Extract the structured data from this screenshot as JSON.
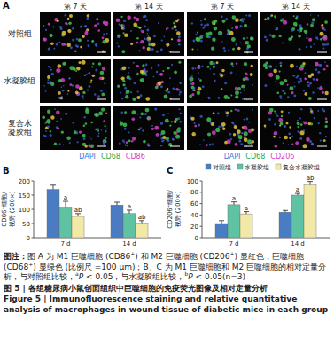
{
  "panel_a": {
    "label": "A",
    "columns": [
      "第 7 天",
      "第 14 天",
      "第 7 天",
      "第 14 天"
    ],
    "rows": [
      "对照组",
      "水凝胶组",
      "复合水凝胶组"
    ],
    "stain_legends": [
      [
        {
          "text": "DAPI",
          "color": "#3b7be0"
        },
        {
          "text": "CD68",
          "color": "#2faa4f"
        },
        {
          "text": "CD86",
          "color": "#d63fc4"
        }
      ],
      [
        {
          "text": "DAPI",
          "color": "#3b7be0"
        },
        {
          "text": "CD68",
          "color": "#2faa4f"
        },
        {
          "text": "CD206",
          "color": "#d63fc4"
        }
      ]
    ]
  },
  "chart_data": [
    {
      "type": "bar",
      "label": "B",
      "y_label": "CD86⁺细胞/视野 (200×)",
      "categories": [
        "7 d",
        "14 d"
      ],
      "series": [
        {
          "color": "#4a7cc4",
          "values": [
            170,
            115
          ],
          "errors": [
            15,
            10
          ]
        },
        {
          "color": "#5fc2a2",
          "values": [
            108,
            85
          ],
          "errors": [
            20,
            12
          ],
          "significance": [
            "a",
            "a"
          ]
        },
        {
          "color": "#f3e9a6",
          "values": [
            75,
            52
          ],
          "errors": [
            10,
            8
          ],
          "significance": [
            "ab",
            "ab"
          ]
        }
      ],
      "ylim": [
        0,
        200
      ],
      "yticks": [
        0,
        50,
        100,
        150,
        200
      ]
    },
    {
      "type": "bar",
      "label": "C",
      "y_label": "CD206⁺细胞/视野 (200×)",
      "categories": [
        "7 d",
        "14 d"
      ],
      "series": [
        {
          "name": "对照组",
          "color": "#4a7cc4",
          "values": [
            25,
            45
          ],
          "errors": [
            5,
            3
          ]
        },
        {
          "name": "水凝胶组",
          "color": "#5fc2a2",
          "values": [
            58,
            75
          ],
          "errors": [
            5,
            3
          ],
          "significance": [
            "a",
            "a"
          ]
        },
        {
          "name": "复合水凝胶组",
          "color": "#f3e9a6",
          "values": [
            42,
            93
          ],
          "errors": [
            4,
            6
          ],
          "significance": [
            "a",
            "ab"
          ]
        }
      ],
      "ylim": [
        0,
        100
      ],
      "yticks": [
        0,
        20,
        40,
        60,
        80,
        100
      ],
      "legend": "top"
    }
  ],
  "caption": {
    "note": [
      {
        "text": "图注：",
        "style": "bold"
      },
      {
        "text": "图 A 为 M1 巨噬细胞 (CD86"
      },
      {
        "text": "+",
        "style": "sup"
      },
      {
        "text": ") 和 M2 巨噬细胞 (CD206"
      },
      {
        "text": "+",
        "style": "sup"
      },
      {
        "text": ") 显红色，巨噬细胞 (CD68"
      },
      {
        "text": "+",
        "style": "sup"
      },
      {
        "text": ") 显绿色 (比例尺 =100 μm)；B、C 为 M1 巨噬细胞和 M2 巨噬细胞的相对定量分析，与对照组比较，"
      },
      {
        "text": "a",
        "style": "sup"
      },
      {
        "text": "P",
        "style": "italic"
      },
      {
        "text": " < 0.05，与水凝胶组比较，"
      },
      {
        "text": "b",
        "style": "sup"
      },
      {
        "text": "P",
        "style": "italic"
      },
      {
        "text": " < 0.05(n=3)"
      }
    ],
    "title_cn": "图 5 | 各组糖尿病小鼠创面组织中巨噬细胞的免疫荧光图像及相对定量分析",
    "title_en": "Figure 5 | Immunofluorescence staining and relative quantitative analysis of macrophages in wound tissue of diabetic mice in each group"
  }
}
